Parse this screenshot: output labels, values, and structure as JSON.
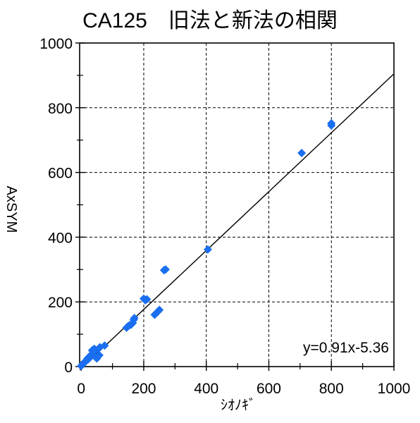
{
  "chart_data": {
    "type": "scatter",
    "title": "CA125　旧法と新法の相関",
    "xlabel": "ｼｵﾉｷﾞ",
    "ylabel": "AxSYM",
    "xlim": [
      -5,
      1000
    ],
    "ylim": [
      0,
      1000
    ],
    "xticks": [
      "0",
      "200",
      "400",
      "600",
      "800",
      "1000"
    ],
    "yticks": [
      "0",
      "200",
      "400",
      "600",
      "800",
      "1000"
    ],
    "grid": true,
    "marker_color": "#1a6ef0",
    "line_color": "#000000",
    "annotation": "y=0.91x-5.36",
    "regression": {
      "slope": 0.91,
      "intercept": -5.36
    },
    "points": [
      {
        "x": 0,
        "y": 2
      },
      {
        "x": 3,
        "y": 5
      },
      {
        "x": 5,
        "y": 8
      },
      {
        "x": 8,
        "y": 10
      },
      {
        "x": 10,
        "y": 12
      },
      {
        "x": 12,
        "y": 15
      },
      {
        "x": 15,
        "y": 18
      },
      {
        "x": 18,
        "y": 20
      },
      {
        "x": 20,
        "y": 25
      },
      {
        "x": 22,
        "y": 22
      },
      {
        "x": 25,
        "y": 30
      },
      {
        "x": 28,
        "y": 28
      },
      {
        "x": 30,
        "y": 35
      },
      {
        "x": 35,
        "y": 50
      },
      {
        "x": 38,
        "y": 52
      },
      {
        "x": 40,
        "y": 45
      },
      {
        "x": 42,
        "y": 55
      },
      {
        "x": 45,
        "y": 30
      },
      {
        "x": 50,
        "y": 25
      },
      {
        "x": 55,
        "y": 55
      },
      {
        "x": 58,
        "y": 35
      },
      {
        "x": 60,
        "y": 60
      },
      {
        "x": 75,
        "y": 65
      },
      {
        "x": 145,
        "y": 120
      },
      {
        "x": 150,
        "y": 125
      },
      {
        "x": 155,
        "y": 128
      },
      {
        "x": 160,
        "y": 130
      },
      {
        "x": 165,
        "y": 135
      },
      {
        "x": 168,
        "y": 145
      },
      {
        "x": 170,
        "y": 150
      },
      {
        "x": 200,
        "y": 210
      },
      {
        "x": 205,
        "y": 205
      },
      {
        "x": 210,
        "y": 208
      },
      {
        "x": 235,
        "y": 160
      },
      {
        "x": 240,
        "y": 165
      },
      {
        "x": 245,
        "y": 170
      },
      {
        "x": 250,
        "y": 175
      },
      {
        "x": 265,
        "y": 298
      },
      {
        "x": 270,
        "y": 300
      },
      {
        "x": 405,
        "y": 362
      },
      {
        "x": 705,
        "y": 660
      },
      {
        "x": 800,
        "y": 745
      },
      {
        "x": 800,
        "y": 752
      }
    ]
  }
}
